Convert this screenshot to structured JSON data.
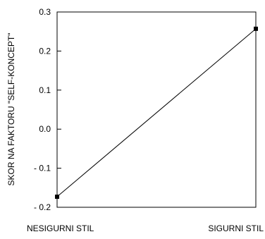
{
  "chart_data": {
    "type": "line",
    "categories": [
      "NESIGURNI STIL",
      "SIGURNI STIL"
    ],
    "series": [
      {
        "values": [
          -0.173,
          0.257
        ]
      }
    ],
    "ylabel": "SKOR NA FAKTORU \"SELF-KONCEPT\"",
    "xlabel": "",
    "title": "",
    "ylim": [
      -0.2,
      0.3
    ],
    "yticks": [
      0.3,
      0.2,
      0.1,
      0.0,
      -0.1,
      -0.2
    ],
    "ytick_labels": [
      "0.3",
      "0.2",
      "0.1",
      "0.0",
      "- 0.1",
      "- 0.2"
    ],
    "grid": false,
    "legend": "none",
    "colors": {
      "line": "#000000",
      "axis": "#000000",
      "marker": "#000000"
    }
  }
}
